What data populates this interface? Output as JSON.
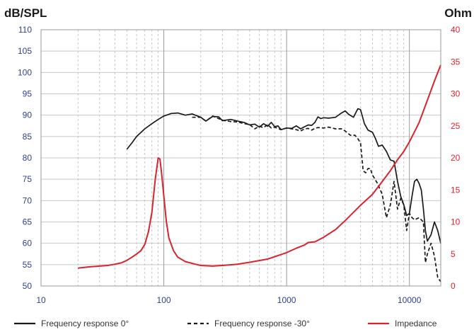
{
  "chart_data": {
    "type": "line",
    "left_axis": {
      "title": "dB/SPL",
      "range": [
        50,
        110
      ],
      "ticks": [
        "50",
        "55",
        "60",
        "65",
        "70",
        "75",
        "80",
        "85",
        "90",
        "95",
        "100",
        "105",
        "110"
      ]
    },
    "right_axis": {
      "title": "Ohm",
      "range": [
        0,
        40
      ],
      "ticks": [
        "0",
        "5",
        "10",
        "15",
        "20",
        "25",
        "30",
        "35",
        "40"
      ]
    },
    "x_axis": {
      "scale": "log",
      "range": [
        10,
        18000
      ],
      "ticks": [
        {
          "value": 10,
          "label": "10"
        },
        {
          "value": 100,
          "label": "100"
        },
        {
          "value": 1000,
          "label": "1000"
        },
        {
          "value": 10000,
          "label": "10000"
        }
      ]
    },
    "grid": true,
    "legend_placement": "bottom",
    "series": [
      {
        "name": "Frequency response 0°",
        "axis": "left",
        "color": "#1a1a1a",
        "style": "solid",
        "points": [
          [
            50,
            82.0
          ],
          [
            55,
            83.5
          ],
          [
            60,
            85.0
          ],
          [
            70,
            86.8
          ],
          [
            80,
            88.0
          ],
          [
            90,
            89.0
          ],
          [
            100,
            89.8
          ],
          [
            115,
            90.4
          ],
          [
            130,
            90.5
          ],
          [
            150,
            90.0
          ],
          [
            170,
            90.3
          ],
          [
            200,
            89.5
          ],
          [
            220,
            88.6
          ],
          [
            250,
            89.7
          ],
          [
            280,
            89.6
          ],
          [
            300,
            88.7
          ],
          [
            350,
            89.0
          ],
          [
            400,
            88.6
          ],
          [
            450,
            88.3
          ],
          [
            500,
            87.7
          ],
          [
            550,
            87.9
          ],
          [
            600,
            87.2
          ],
          [
            650,
            88.0
          ],
          [
            700,
            87.4
          ],
          [
            750,
            88.3
          ],
          [
            800,
            87.3
          ],
          [
            850,
            87.5
          ],
          [
            900,
            86.6
          ],
          [
            1000,
            87.0
          ],
          [
            1100,
            86.9
          ],
          [
            1200,
            87.5
          ],
          [
            1300,
            86.8
          ],
          [
            1400,
            87.3
          ],
          [
            1500,
            87.7
          ],
          [
            1600,
            87.6
          ],
          [
            1700,
            88.3
          ],
          [
            1800,
            89.6
          ],
          [
            1900,
            89.2
          ],
          [
            2000,
            89.4
          ],
          [
            2200,
            89.3
          ],
          [
            2500,
            89.5
          ],
          [
            2800,
            90.5
          ],
          [
            3000,
            91.0
          ],
          [
            3200,
            90.2
          ],
          [
            3500,
            89.5
          ],
          [
            3800,
            91.5
          ],
          [
            4000,
            91.3
          ],
          [
            4300,
            88.0
          ],
          [
            4600,
            86.5
          ],
          [
            5000,
            86.0
          ],
          [
            5300,
            84.5
          ],
          [
            5600,
            82.7
          ],
          [
            6000,
            83.0
          ],
          [
            6500,
            81.5
          ],
          [
            7000,
            79.5
          ],
          [
            7500,
            79.2
          ],
          [
            8000,
            74.5
          ],
          [
            8500,
            71.0
          ],
          [
            9000,
            69.0
          ],
          [
            9500,
            66.5
          ],
          [
            10000,
            67.0
          ],
          [
            10500,
            71.0
          ],
          [
            11000,
            74.5
          ],
          [
            11500,
            75.0
          ],
          [
            12000,
            74.0
          ],
          [
            12500,
            72.5
          ],
          [
            13000,
            68.0
          ],
          [
            13500,
            63.0
          ],
          [
            14000,
            60.5
          ],
          [
            15000,
            62.0
          ],
          [
            16000,
            65.0
          ],
          [
            17000,
            63.0
          ],
          [
            18000,
            60.0
          ]
        ]
      },
      {
        "name": "Frequency response -30°",
        "axis": "left",
        "color": "#1a1a1a",
        "style": "dashed",
        "points": [
          [
            170,
            89.5
          ],
          [
            200,
            89.5
          ],
          [
            220,
            88.6
          ],
          [
            250,
            89.8
          ],
          [
            300,
            88.8
          ],
          [
            350,
            88.5
          ],
          [
            400,
            88.4
          ],
          [
            450,
            88.0
          ],
          [
            500,
            87.8
          ],
          [
            550,
            86.8
          ],
          [
            600,
            87.4
          ],
          [
            650,
            87.1
          ],
          [
            700,
            87.8
          ],
          [
            750,
            87.0
          ],
          [
            800,
            87.2
          ],
          [
            900,
            86.6
          ],
          [
            1000,
            87.0
          ],
          [
            1100,
            86.8
          ],
          [
            1200,
            86.6
          ],
          [
            1300,
            86.3
          ],
          [
            1400,
            86.8
          ],
          [
            1500,
            86.9
          ],
          [
            1600,
            86.5
          ],
          [
            1700,
            86.9
          ],
          [
            1800,
            87.1
          ],
          [
            2000,
            87.0
          ],
          [
            2200,
            87.2
          ],
          [
            2500,
            86.8
          ],
          [
            2800,
            86.8
          ],
          [
            3000,
            86.3
          ],
          [
            3300,
            85.3
          ],
          [
            3600,
            85.3
          ],
          [
            3800,
            84.5
          ],
          [
            4000,
            83.5
          ],
          [
            4200,
            77.0
          ],
          [
            4400,
            76.5
          ],
          [
            4600,
            77.5
          ],
          [
            4800,
            77.5
          ],
          [
            5000,
            76.0
          ],
          [
            5500,
            74.0
          ],
          [
            6000,
            71.5
          ],
          [
            6500,
            66.0
          ],
          [
            7000,
            69.0
          ],
          [
            7500,
            74.5
          ],
          [
            8000,
            68.0
          ],
          [
            8500,
            70.5
          ],
          [
            9000,
            69.0
          ],
          [
            9500,
            63.0
          ],
          [
            10000,
            67.0
          ],
          [
            10500,
            66.0
          ],
          [
            11000,
            65.5
          ],
          [
            12000,
            66.0
          ],
          [
            13000,
            65.0
          ],
          [
            13500,
            55.5
          ],
          [
            14000,
            57.5
          ],
          [
            15000,
            60.0
          ],
          [
            16000,
            57.0
          ],
          [
            17000,
            52.0
          ],
          [
            18000,
            51.0
          ]
        ]
      },
      {
        "name": "Impedance",
        "axis": "right",
        "color": "#d9232e",
        "style": "solid",
        "points": [
          [
            20,
            2.8
          ],
          [
            25,
            3.0
          ],
          [
            30,
            3.1
          ],
          [
            35,
            3.2
          ],
          [
            40,
            3.4
          ],
          [
            45,
            3.6
          ],
          [
            50,
            4.0
          ],
          [
            55,
            4.5
          ],
          [
            60,
            5.0
          ],
          [
            65,
            5.5
          ],
          [
            70,
            6.5
          ],
          [
            75,
            8.5
          ],
          [
            80,
            11.5
          ],
          [
            85,
            16.5
          ],
          [
            90,
            20.0
          ],
          [
            93,
            19.8
          ],
          [
            96,
            17.5
          ],
          [
            100,
            14.0
          ],
          [
            105,
            10.0
          ],
          [
            110,
            7.5
          ],
          [
            120,
            5.5
          ],
          [
            130,
            4.5
          ],
          [
            150,
            3.8
          ],
          [
            180,
            3.4
          ],
          [
            200,
            3.2
          ],
          [
            250,
            3.1
          ],
          [
            300,
            3.2
          ],
          [
            400,
            3.4
          ],
          [
            500,
            3.7
          ],
          [
            700,
            4.2
          ],
          [
            1000,
            5.2
          ],
          [
            1200,
            5.9
          ],
          [
            1400,
            6.4
          ],
          [
            1500,
            6.8
          ],
          [
            1700,
            6.9
          ],
          [
            2000,
            7.6
          ],
          [
            2500,
            8.8
          ],
          [
            3000,
            10.2
          ],
          [
            3500,
            11.5
          ],
          [
            4000,
            12.6
          ],
          [
            5000,
            14.3
          ],
          [
            6000,
            16.3
          ],
          [
            7000,
            18.0
          ],
          [
            8000,
            19.7
          ],
          [
            9000,
            21.0
          ],
          [
            10000,
            22.5
          ],
          [
            12000,
            25.5
          ],
          [
            14000,
            29.0
          ],
          [
            16000,
            32.0
          ],
          [
            18000,
            34.5
          ]
        ]
      }
    ],
    "legend": [
      {
        "label": "Frequency response 0°",
        "color": "#1a1a1a",
        "style": "solid"
      },
      {
        "label": "Frequency response -30°",
        "color": "#1a1a1a",
        "style": "dashed"
      },
      {
        "label": "Impedance",
        "color": "#d9232e",
        "style": "solid"
      }
    ]
  }
}
